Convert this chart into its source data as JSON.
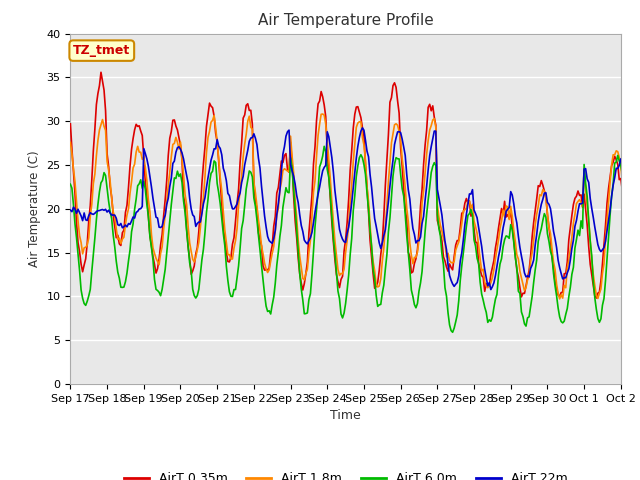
{
  "title": "Air Temperature Profile",
  "xlabel": "Time",
  "ylabel": "Air Temperature (C)",
  "ylim": [
    0,
    40
  ],
  "yticks": [
    0,
    5,
    10,
    15,
    20,
    25,
    30,
    35,
    40
  ],
  "plot_bg_color": "#e8e8e8",
  "fig_bg_color": "#ffffff",
  "grid_color": "#ffffff",
  "annotation_text": "TZ_tmet",
  "annotation_bg": "#ffffcc",
  "annotation_border": "#cc8800",
  "annotation_text_color": "#cc0000",
  "series": {
    "AirT 0.35m": {
      "color": "#dd0000",
      "linewidth": 1.2
    },
    "AirT 1.8m": {
      "color": "#ff8800",
      "linewidth": 1.2
    },
    "AirT 6.0m": {
      "color": "#00bb00",
      "linewidth": 1.2
    },
    "AirT 22m": {
      "color": "#0000cc",
      "linewidth": 1.2
    }
  },
  "xtick_dates": [
    "Sep 17",
    "Sep 18",
    "Sep 19",
    "Sep 20",
    "Sep 21",
    "Sep 22",
    "Sep 23",
    "Sep 24",
    "Sep 25",
    "Sep 26",
    "Sep 27",
    "Sep 28",
    "Sep 29",
    "Sep 30",
    "Oct 1",
    "Oct 2"
  ],
  "legend_fontsize": 9,
  "title_fontsize": 11,
  "tick_fontsize": 8
}
